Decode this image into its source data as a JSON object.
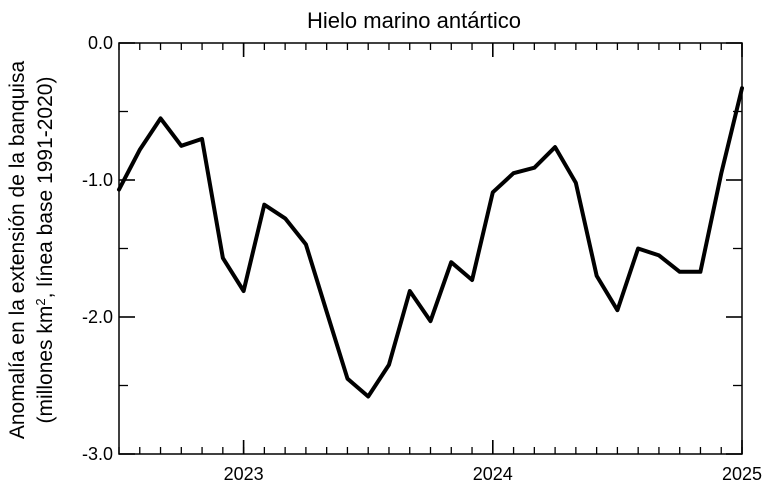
{
  "chart_data": {
    "type": "line",
    "title": "Hielo marino antártico",
    "ylabel_line1": "Anomalía en la extensión de la banquisa",
    "ylabel_line2_prefix": "(millones km",
    "ylabel_line2_sup": "2",
    "ylabel_line2_suffix": ", línea base 1991-2020)",
    "xlabel": "",
    "xlim": [
      2022.5,
      2025.0
    ],
    "ylim": [
      -3.0,
      0.0
    ],
    "y_ticks": [
      {
        "value": 0.0,
        "label": "0.0"
      },
      {
        "value": -1.0,
        "label": "-1.0"
      },
      {
        "value": -2.0,
        "label": "-2.0"
      },
      {
        "value": -3.0,
        "label": "-3.0"
      }
    ],
    "y_minor_ticks": [
      -0.5,
      -1.5,
      -2.5
    ],
    "x_ticks": [
      {
        "value": 2023.0,
        "label": "2023"
      },
      {
        "value": 2024.0,
        "label": "2024"
      },
      {
        "value": 2025.0,
        "label": "2025"
      }
    ],
    "x_minor_step_months": 1,
    "grid": false,
    "series": [
      {
        "color": "#000000",
        "x": [
          2022.5,
          2022.583,
          2022.667,
          2022.75,
          2022.833,
          2022.917,
          2023.0,
          2023.083,
          2023.167,
          2023.25,
          2023.333,
          2023.417,
          2023.5,
          2023.583,
          2023.667,
          2023.75,
          2023.833,
          2023.917,
          2024.0,
          2024.083,
          2024.167,
          2024.25,
          2024.333,
          2024.417,
          2024.5,
          2024.583,
          2024.667,
          2024.75,
          2024.833,
          2024.917,
          2025.0
        ],
        "y": [
          -1.07,
          -0.78,
          -0.55,
          -0.75,
          -0.7,
          -1.57,
          -1.81,
          -1.18,
          -1.28,
          -1.47,
          -1.96,
          -2.45,
          -2.58,
          -2.35,
          -1.81,
          -2.03,
          -1.6,
          -1.73,
          -1.09,
          -0.95,
          -0.91,
          -0.76,
          -1.02,
          -1.7,
          -1.95,
          -1.5,
          -1.55,
          -1.67,
          -1.67,
          -0.95,
          -0.33
        ]
      }
    ]
  }
}
